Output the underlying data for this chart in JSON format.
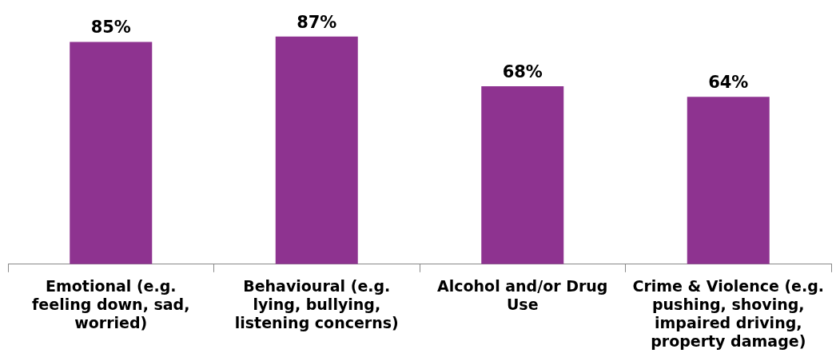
{
  "chart_data": {
    "type": "bar",
    "categories": [
      "Emotional (e.g. feeling down, sad, worried)",
      "Behavioural (e.g. lying, bullying, listening concerns)",
      "Alcohol and/or Drug Use",
      "Crime & Violence (e.g. pushing, shoving, impaired driving, property damage)"
    ],
    "values": [
      85,
      87,
      68,
      64
    ],
    "color": "#8e3390",
    "value_labels": [
      "85%",
      "87%",
      "68%",
      "64%"
    ],
    "grid": false,
    "legend": false
  }
}
